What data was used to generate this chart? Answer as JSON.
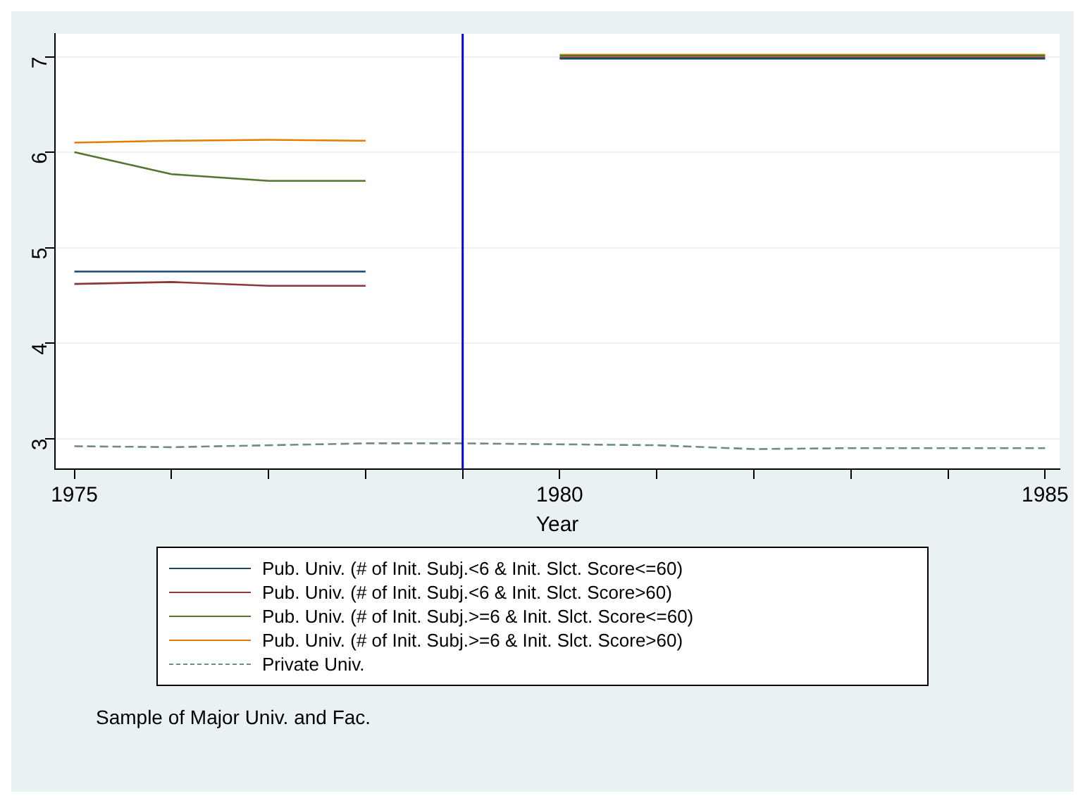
{
  "chart_data": {
    "type": "line",
    "xlabel": "Year",
    "x": [
      1975,
      1976,
      1977,
      1978,
      1979,
      1980,
      1981,
      1982,
      1983,
      1984,
      1985
    ],
    "series": [
      {
        "name": "Pub. Univ. (# of Init. Subj.<6 & Init. Slct. Score<=60)",
        "color": "#1a476f",
        "values": [
          4.75,
          4.75,
          4.75,
          4.75,
          null,
          6.98,
          6.98,
          6.98,
          6.98,
          6.98,
          6.98
        ]
      },
      {
        "name": "Pub. Univ. (# of Init. Subj.<6 & Init. Slct. Score>60)",
        "color": "#90353b",
        "values": [
          4.62,
          4.64,
          4.6,
          4.6,
          null,
          6.99,
          6.99,
          6.99,
          6.99,
          6.99,
          6.99
        ]
      },
      {
        "name": "Pub. Univ. (# of Init. Subj.>=6 & Init. Slct. Score<=60)",
        "color": "#55752f",
        "values": [
          6.0,
          5.77,
          5.7,
          5.7,
          null,
          7.01,
          7.01,
          7.01,
          7.01,
          7.01,
          7.01
        ]
      },
      {
        "name": "Pub. Univ. (# of Init. Subj.>=6 & Init. Slct. Score>60)",
        "color": "#e37e00",
        "values": [
          6.1,
          6.12,
          6.13,
          6.12,
          null,
          7.02,
          7.02,
          7.02,
          7.02,
          7.02,
          7.02
        ]
      },
      {
        "name": "Private Univ.",
        "color": "#6e8e84",
        "line_style": "dashed",
        "values": [
          2.92,
          2.91,
          2.93,
          2.95,
          2.95,
          2.94,
          2.93,
          2.89,
          2.9,
          2.9,
          2.9
        ]
      }
    ],
    "xlim": [
      1974.8,
      1985.15
    ],
    "xticks": [
      1975,
      {
        "value": 1976,
        "label": null
      },
      {
        "value": 1977,
        "label": null
      },
      {
        "value": 1978,
        "label": null
      },
      {
        "value": 1979,
        "label": null
      },
      1980,
      {
        "value": 1981,
        "label": null
      },
      {
        "value": 1982,
        "label": null
      },
      {
        "value": 1983,
        "label": null
      },
      {
        "value": 1984,
        "label": null
      },
      1985
    ],
    "ylim": [
      2.68,
      7.24
    ],
    "yticks": [
      3,
      4,
      5,
      6,
      7
    ],
    "ref_lines": [
      {
        "axis": "x",
        "value": 1979,
        "color": "#0000ff"
      }
    ],
    "grid": "y",
    "legend": "bottom",
    "marker": "none",
    "annotations": [
      "Sample of Major Univ. and Fac."
    ]
  }
}
